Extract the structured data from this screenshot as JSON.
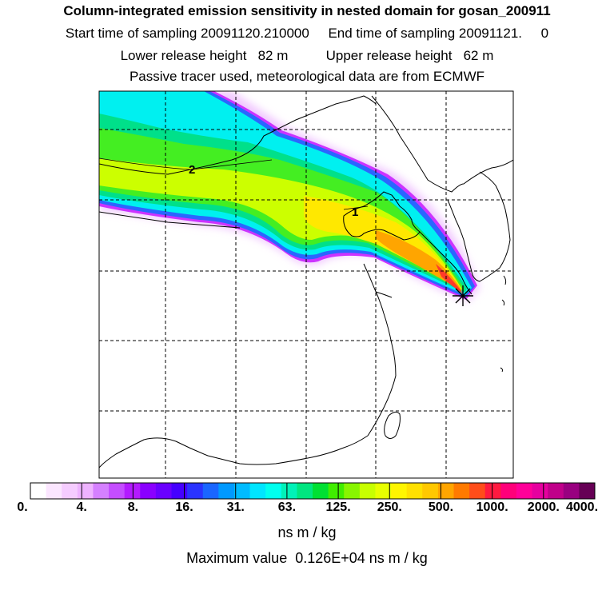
{
  "titles": {
    "line1": "Column-integrated emission sensitivity in nested domain for gosan_200911",
    "line2": "Start time of sampling 20091120.210000     End time of sampling 20091121.     0",
    "line3": "Lower release height   82 m          Upper release height   62 m",
    "line4": "Passive tracer used, meteorological data are from ECMWF"
  },
  "map": {
    "receptor_marker": "asterisk-icon",
    "contour_labels": [
      "2",
      "1"
    ]
  },
  "colorbar": {
    "tick_labels": [
      "0.",
      "4.",
      "8.",
      "16.",
      "31.",
      "63.",
      "125.",
      "250.",
      "500.",
      "1000.",
      "2000.",
      "4000."
    ],
    "unit": "ns m / kg",
    "colors": [
      "#ffffff",
      "#fbe6ff",
      "#f5ccff",
      "#eeb3ff",
      "#d580ff",
      "#c44dff",
      "#b31aff",
      "#8a00ff",
      "#6a00ff",
      "#4500ff",
      "#2a33ff",
      "#1a66ff",
      "#0099ff",
      "#00bbff",
      "#00e5ff",
      "#00ffee",
      "#00f2b8",
      "#00e680",
      "#00e033",
      "#40ee00",
      "#88f500",
      "#c8ff00",
      "#e8ff00",
      "#fff500",
      "#ffe000",
      "#ffc800",
      "#ffa500",
      "#ff7a00",
      "#ff4d1a",
      "#ff1a40",
      "#ff007a",
      "#ff0099",
      "#e6009f",
      "#c0008a",
      "#990080",
      "#660055"
    ]
  },
  "footer": {
    "maximum_value": "Maximum value  0.126E+04 ns m / kg"
  }
}
